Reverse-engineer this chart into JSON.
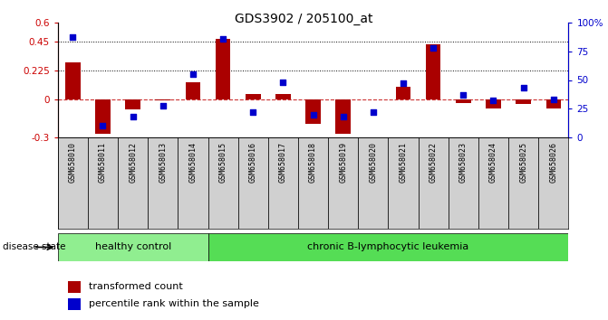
{
  "title": "GDS3902 / 205100_at",
  "samples": [
    "GSM658010",
    "GSM658011",
    "GSM658012",
    "GSM658013",
    "GSM658014",
    "GSM658015",
    "GSM658016",
    "GSM658017",
    "GSM658018",
    "GSM658019",
    "GSM658020",
    "GSM658021",
    "GSM658022",
    "GSM658023",
    "GSM658024",
    "GSM658025",
    "GSM658026"
  ],
  "transformed_count": [
    0.29,
    -0.27,
    -0.08,
    -0.01,
    0.13,
    0.47,
    0.04,
    0.04,
    -0.19,
    -0.27,
    0.0,
    0.1,
    0.43,
    -0.03,
    -0.07,
    -0.04,
    -0.07
  ],
  "percentile_rank": [
    87,
    10,
    18,
    28,
    55,
    86,
    22,
    48,
    20,
    18,
    22,
    47,
    78,
    37,
    32,
    43,
    33
  ],
  "ylim_left": [
    -0.3,
    0.6
  ],
  "ylim_right": [
    0,
    100
  ],
  "yticks_left": [
    -0.3,
    0.0,
    0.225,
    0.45,
    0.6
  ],
  "yticks_right": [
    0,
    25,
    50,
    75,
    100
  ],
  "hlines": [
    0.225,
    0.45
  ],
  "bar_color": "#aa0000",
  "dot_color": "#0000cc",
  "zero_line_color": "#cc3333",
  "healthy_control_count": 5,
  "group1_label": "healthy control",
  "group2_label": "chronic B-lymphocytic leukemia",
  "group1_color": "#90ee90",
  "group2_color": "#55dd55",
  "legend_bar": "transformed count",
  "legend_dot": "percentile rank within the sample",
  "disease_state_label": "disease state",
  "right_axis_label_color": "#0000cc",
  "left_axis_label_color": "#cc0000",
  "tick_label_bg": "#d0d0d0"
}
